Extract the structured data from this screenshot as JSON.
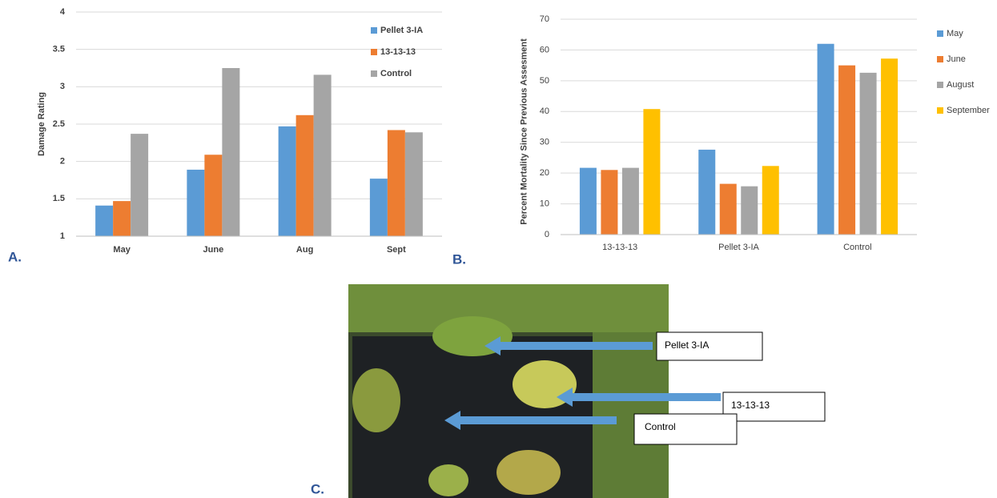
{
  "chart_data": [
    {
      "type": "bar",
      "ylabel": "Damage Rating",
      "categories": [
        "May",
        "June",
        "Aug",
        "Sept"
      ],
      "series": [
        {
          "name": "Pellet 3-IA",
          "color": "#5b9bd5",
          "values": [
            1.41,
            1.89,
            2.47,
            1.77
          ]
        },
        {
          "name": "13-13-13",
          "color": "#ed7d31",
          "values": [
            1.47,
            2.09,
            2.62,
            2.42
          ]
        },
        {
          "name": "Control",
          "color": "#a5a5a5",
          "values": [
            2.37,
            3.25,
            3.16,
            2.39
          ]
        }
      ],
      "ylim": [
        1,
        4
      ],
      "yticks": [
        1,
        1.5,
        2,
        2.5,
        3,
        3.5,
        4
      ],
      "grid": true,
      "legend": "right"
    },
    {
      "type": "bar",
      "ylabel": "Percent Mortality Since Previous Assesment",
      "categories": [
        "13-13-13",
        "Pellet 3-IA",
        "Control"
      ],
      "series": [
        {
          "name": "May",
          "color": "#5b9bd5",
          "values": [
            21.7,
            27.6,
            62
          ]
        },
        {
          "name": "June",
          "color": "#ed7d31",
          "values": [
            21,
            16.5,
            55
          ]
        },
        {
          "name": "August",
          "color": "#a5a5a5",
          "values": [
            21.7,
            15.7,
            52.6
          ]
        },
        {
          "name": "September",
          "color": "#ffc000",
          "values": [
            40.8,
            22.3,
            57.2
          ]
        }
      ],
      "ylim": [
        0,
        70
      ],
      "yticks": [
        0,
        10,
        20,
        30,
        40,
        50,
        60,
        70
      ],
      "grid": true,
      "legend": "right"
    }
  ],
  "panel_labels": [
    "A.",
    "B.",
    "C."
  ],
  "photo": {
    "annotations": [
      "Pellet 3-IA",
      "13-13-13",
      "Control"
    ]
  }
}
